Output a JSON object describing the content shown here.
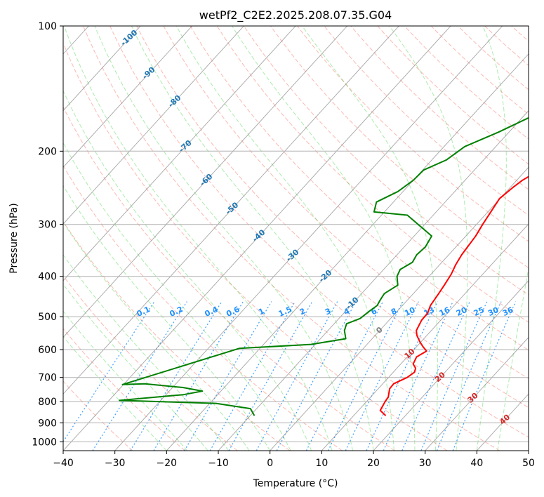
{
  "chart_data": {
    "type": "line",
    "chart_kind": "skew-T log-P diagram",
    "title": "wetPf2_C2E2.2025.208.07.35.G04",
    "xlabel": "Temperature (°C)",
    "ylabel": "Pressure (hPa)",
    "xlim": [
      -40,
      50
    ],
    "ylim": [
      1050,
      100
    ],
    "y_scale": "log",
    "x_ticks": [
      -40,
      -30,
      -20,
      -10,
      0,
      10,
      20,
      30,
      40,
      50
    ],
    "y_ticks": [
      100,
      200,
      300,
      400,
      500,
      600,
      700,
      800,
      900,
      1000
    ],
    "grid": true,
    "colors": {
      "temperature": "#ff0000",
      "dewpoint": "#008000",
      "isotherm": "#808080",
      "dry_adiabat": "#fa8072",
      "moist_adiabat": "#32cd32",
      "mixing_ratio": "#1e90ff",
      "annotation_blue": "#1f77b4",
      "annotation_red": "#d62728"
    },
    "series": [
      {
        "points": [
          [
            16.2,
            865
          ],
          [
            14.2,
            840
          ],
          [
            13.6,
            800
          ],
          [
            13.4,
            780
          ],
          [
            12.2,
            745
          ],
          [
            12.1,
            725
          ],
          [
            13.6,
            700
          ],
          [
            14.1,
            680
          ],
          [
            13.6,
            665
          ],
          [
            12.4,
            650
          ],
          [
            11.8,
            625
          ],
          [
            12.7,
            605
          ],
          [
            11.2,
            590
          ],
          [
            9.8,
            575
          ],
          [
            8.1,
            555
          ],
          [
            7.1,
            540
          ],
          [
            6.3,
            510
          ],
          [
            6.2,
            490
          ],
          [
            5.4,
            470
          ],
          [
            4.9,
            440
          ],
          [
            4.5,
            420
          ],
          [
            3.9,
            395
          ],
          [
            3.1,
            375
          ],
          [
            2.5,
            355
          ],
          [
            1.9,
            320
          ],
          [
            1.2,
            300
          ],
          [
            0.4,
            275
          ],
          [
            -0.1,
            260
          ],
          [
            0.5,
            245
          ],
          [
            1.1,
            235
          ],
          [
            2.9,
            220
          ],
          [
            3.9,
            210
          ],
          [
            4.6,
            195
          ],
          [
            5.4,
            180
          ],
          [
            5.9,
            165
          ],
          [
            6.6,
            150
          ],
          [
            7.4,
            140
          ],
          [
            8.2,
            130
          ],
          [
            9.6,
            120
          ],
          [
            10.6,
            112
          ],
          [
            11.4,
            106
          ],
          [
            11.6,
            100
          ]
        ]
      },
      {
        "points": [
          [
            -9.2,
            865
          ],
          [
            -11.2,
            832
          ],
          [
            -18.8,
            808
          ],
          [
            -38,
            795
          ],
          [
            -26.6,
            770
          ],
          [
            -23.6,
            755
          ],
          [
            -28,
            740
          ],
          [
            -36,
            725
          ],
          [
            -40.2,
            728
          ],
          [
            -24,
            596
          ],
          [
            -10.8,
            583
          ],
          [
            -5.1,
            565
          ],
          [
            -6.8,
            540
          ],
          [
            -7.6,
            520
          ],
          [
            -5.9,
            505
          ],
          [
            -5.4,
            485
          ],
          [
            -4.9,
            470
          ],
          [
            -5.3,
            455
          ],
          [
            -5.6,
            440
          ],
          [
            -4.5,
            420
          ],
          [
            -6.2,
            400
          ],
          [
            -6.8,
            385
          ],
          [
            -5.7,
            370
          ],
          [
            -6.2,
            355
          ],
          [
            -5.9,
            340
          ],
          [
            -6.6,
            320
          ],
          [
            -15,
            285
          ],
          [
            -22,
            280
          ],
          [
            -23.3,
            265
          ],
          [
            -21,
            250
          ],
          [
            -20,
            235
          ],
          [
            -19.8,
            222
          ],
          [
            -17.2,
            210
          ],
          [
            -16,
            195
          ],
          [
            -12,
            180
          ],
          [
            -8.4,
            165
          ],
          [
            -6.4,
            150
          ],
          [
            -4.6,
            135
          ],
          [
            -3.4,
            122
          ],
          [
            -2,
            112
          ],
          [
            -1.1,
            104
          ],
          [
            0.3,
            100
          ]
        ]
      }
    ],
    "annotations": {
      "isotherm_labels": [
        "-100",
        "-90",
        "-80",
        "-70",
        "-60",
        "-50",
        "-40",
        "-30",
        "-20",
        "-10",
        "0",
        "10",
        "20",
        "30",
        "40"
      ],
      "mixing_ratio_labels": [
        "0.1",
        "0.2",
        "0.4",
        "0.6",
        "1",
        "1.5",
        "2",
        "3",
        "4",
        "6",
        "8",
        "10",
        "13",
        "16",
        "20",
        "25",
        "30",
        "36"
      ]
    }
  }
}
